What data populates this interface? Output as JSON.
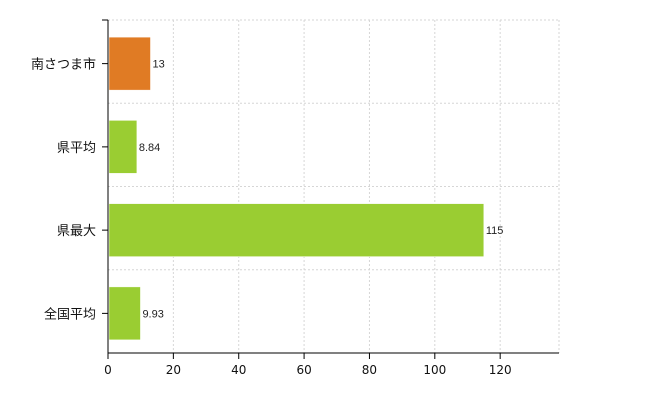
{
  "chart_data": {
    "type": "bar",
    "orientation": "horizontal",
    "categories": [
      "南さつま市",
      "県平均",
      "県最大",
      "全国平均"
    ],
    "values": [
      13,
      8.84,
      115,
      9.93
    ],
    "value_labels": [
      "13",
      "8.84",
      "115",
      "9.93"
    ],
    "bar_colors": [
      "#e07b24",
      "#9acd32",
      "#9acd32",
      "#9acd32"
    ],
    "title": "",
    "xlabel": "",
    "ylabel": "",
    "xlim": [
      0,
      138
    ],
    "x_ticks": [
      0,
      20,
      40,
      60,
      80,
      100,
      120
    ],
    "grid": true,
    "legend": "none"
  }
}
